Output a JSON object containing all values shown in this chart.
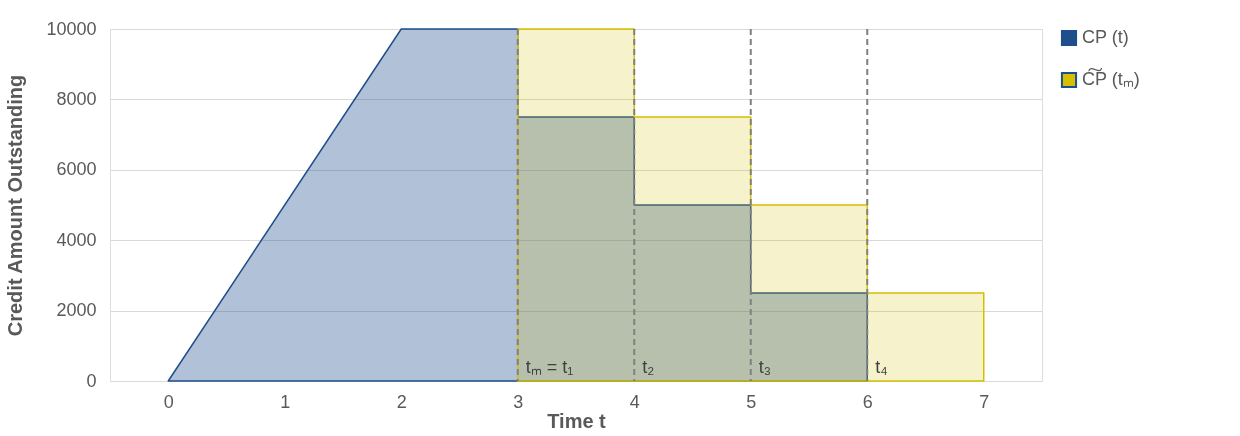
{
  "chart_data": {
    "type": "area",
    "xlabel": "Time t",
    "ylabel": "Credit Amount Outstanding",
    "xlim": [
      -0.5,
      7.5
    ],
    "xticks": [
      0,
      1,
      2,
      3,
      4,
      5,
      6,
      7
    ],
    "ylim": [
      0,
      10000
    ],
    "yticks": [
      0,
      2000,
      4000,
      6000,
      8000,
      10000
    ],
    "grid": "y",
    "legend": "right",
    "series": [
      {
        "name": "CP (t)",
        "color": "#1f4e8c",
        "x": [
          0,
          2,
          3,
          3,
          4,
          4,
          5,
          5,
          6,
          6
        ],
        "values": [
          0,
          10000,
          10000,
          7500,
          7500,
          5000,
          5000,
          2500,
          2500,
          0
        ]
      },
      {
        "name": "C͠P (tₘ)",
        "color": "#d4c000",
        "x": [
          3,
          3,
          4,
          4,
          5,
          5,
          6,
          6,
          7,
          7
        ],
        "values": [
          0,
          10000,
          10000,
          7500,
          7500,
          5000,
          5000,
          2500,
          2500,
          0
        ]
      }
    ],
    "ref_lines": [
      {
        "axis": "x",
        "value": 3,
        "label": "tₘ = t₁",
        "color": "#808080",
        "line_style": "dashed"
      },
      {
        "axis": "x",
        "value": 4,
        "label": "t₂",
        "color": "#808080",
        "line_style": "dashed"
      },
      {
        "axis": "x",
        "value": 5,
        "label": "t₃",
        "color": "#808080",
        "line_style": "dashed"
      },
      {
        "axis": "x",
        "value": 6,
        "label": "t₄",
        "color": "#808080",
        "line_style": "dashed"
      }
    ]
  }
}
